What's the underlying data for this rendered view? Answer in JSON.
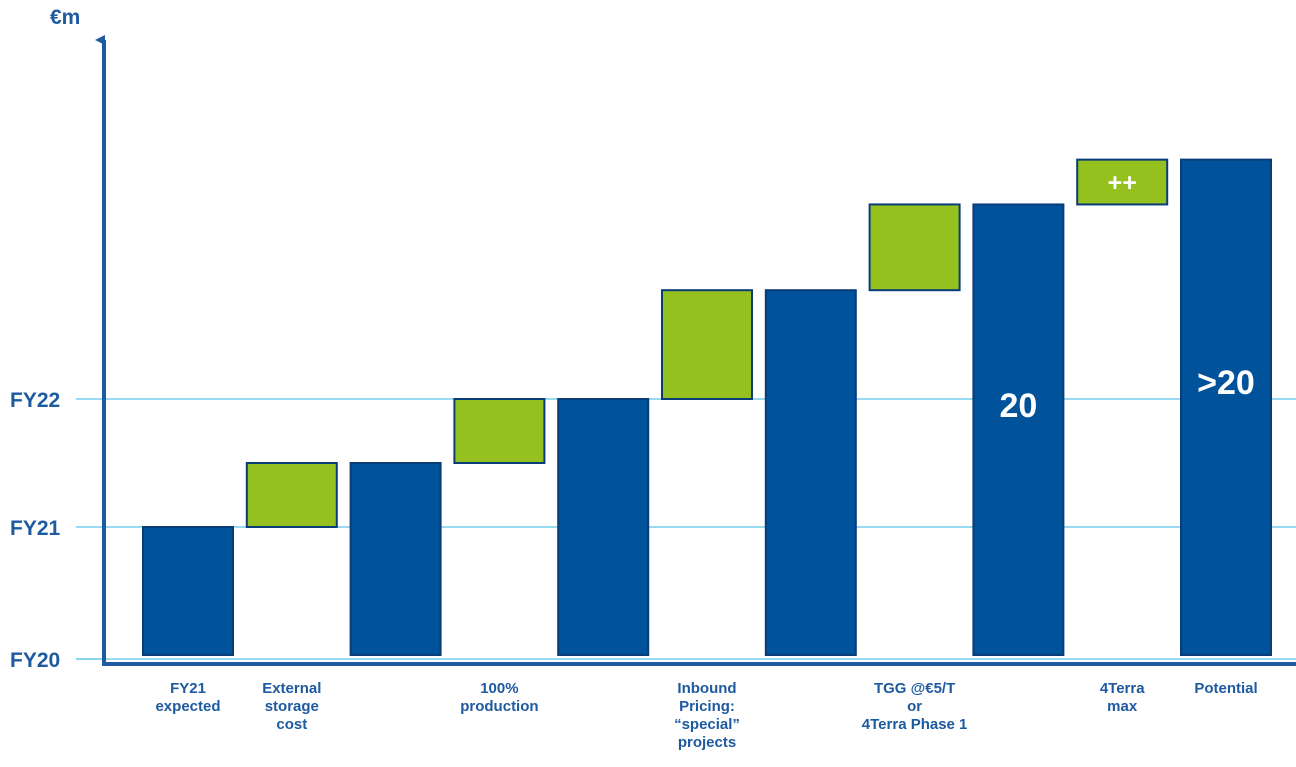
{
  "chart_data": {
    "type": "bar",
    "subtype": "waterfall",
    "ylabel": "€m",
    "y_ticks": [
      {
        "label": "FY20",
        "value": 0
      },
      {
        "label": "FY21",
        "value": 1
      },
      {
        "label": "FY22",
        "value": 2
      }
    ],
    "ylim": [
      0,
      4.2
    ],
    "grid": true,
    "colors": {
      "total": "#00529b",
      "increment": "#95c11f",
      "axis": "#1e5aa0",
      "grid": "#5bc4e6"
    },
    "bars": [
      {
        "kind": "total",
        "bottom": 0,
        "top": 1.0,
        "label_lines": [
          "FY21",
          "expected"
        ],
        "value_label": ""
      },
      {
        "kind": "increment",
        "bottom": 1.0,
        "top": 1.5,
        "label_lines": [
          "External",
          "storage",
          "cost"
        ],
        "value_label": ""
      },
      {
        "kind": "total",
        "bottom": 0,
        "top": 1.5,
        "label_lines": [],
        "value_label": ""
      },
      {
        "kind": "increment",
        "bottom": 1.5,
        "top": 2.0,
        "label_lines": [
          "100%",
          "production"
        ],
        "value_label": ""
      },
      {
        "kind": "total",
        "bottom": 0,
        "top": 2.0,
        "label_lines": [],
        "value_label": ""
      },
      {
        "kind": "increment",
        "bottom": 2.0,
        "top": 2.85,
        "label_lines": [
          "Inbound",
          "Pricing:",
          "“special”",
          "projects"
        ],
        "value_label": ""
      },
      {
        "kind": "total",
        "bottom": 0,
        "top": 2.85,
        "label_lines": [],
        "value_label": ""
      },
      {
        "kind": "increment",
        "bottom": 2.85,
        "top": 3.52,
        "label_lines": [
          "TGG @€5/T",
          "or",
          "4Terra Phase 1"
        ],
        "value_label": ""
      },
      {
        "kind": "total",
        "bottom": 0,
        "top": 3.52,
        "label_lines": [],
        "value_label": "20"
      },
      {
        "kind": "increment",
        "bottom": 3.52,
        "top": 3.87,
        "label_lines": [
          "4Terra",
          "max"
        ],
        "value_label": "++"
      },
      {
        "kind": "total",
        "bottom": 0,
        "top": 3.87,
        "label_lines": [
          "Potential"
        ],
        "value_label": ">20"
      }
    ]
  }
}
